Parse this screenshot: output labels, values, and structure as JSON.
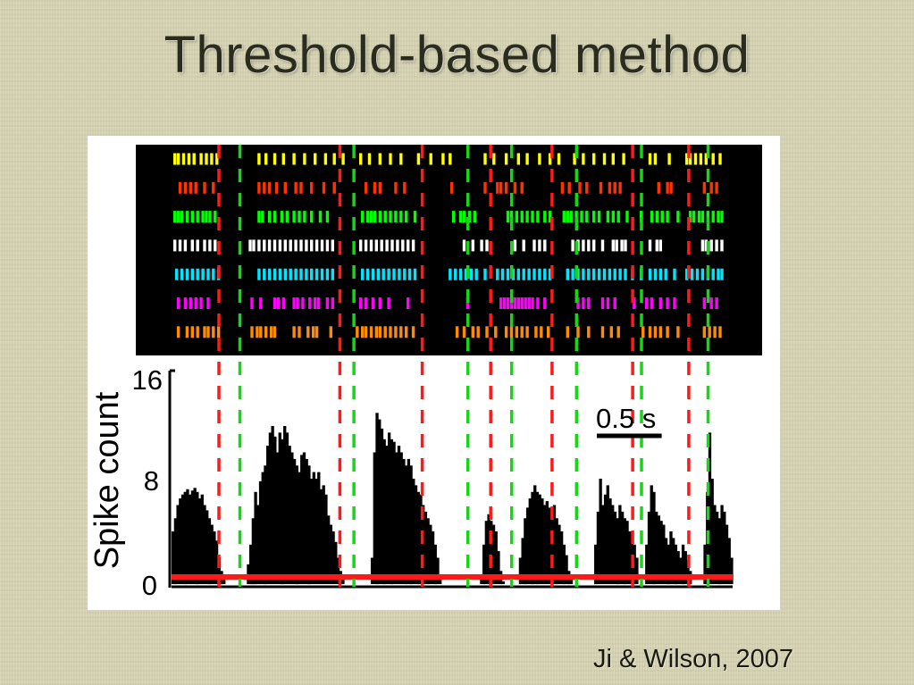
{
  "slide": {
    "title": "Threshold-based method",
    "citation": "Ji & Wilson, 2007"
  },
  "colors": {
    "background": "#d8d5b4",
    "raster_background": "#000000",
    "histogram_fill": "#000000",
    "threshold_line": "#ff1a1a",
    "event_start_line": "#19d419",
    "event_end_line": "#ff1a1a"
  },
  "chart_data": {
    "type": "raster-histogram",
    "scale_bar_label": "0.5 s",
    "scale_bar_seconds": 0.5,
    "time_range_s": [
      0,
      3.2
    ],
    "raster": {
      "unit_colors": [
        "#ffff00",
        "#ff3300",
        "#00ff00",
        "#ffffff",
        "#00e5ff",
        "#ff00ff",
        "#ff8c00"
      ],
      "units": [
        {
          "spikes": [
            0.01,
            0.03,
            0.06,
            0.09,
            0.12,
            0.16,
            0.19,
            0.22,
            0.25,
            0.49,
            0.53,
            0.58,
            0.63,
            0.69,
            0.75,
            0.81,
            0.87,
            0.92,
            0.97,
            1.07,
            1.12,
            1.18,
            1.24,
            1.3,
            1.4,
            1.47,
            1.54,
            1.58,
            1.78,
            1.83,
            1.9,
            1.97,
            2.02,
            2.09,
            2.15,
            2.2,
            2.29,
            2.34,
            2.4,
            2.46,
            2.51,
            2.57,
            2.72,
            2.75,
            2.83,
            2.93,
            2.95,
            2.98,
            3.01,
            3.04,
            3.08,
            3.12
          ]
        },
        {
          "spikes": [
            0.04,
            0.07,
            0.1,
            0.13,
            0.18,
            0.23,
            0.49,
            0.52,
            0.55,
            0.59,
            0.64,
            0.7,
            0.73,
            0.79,
            0.86,
            0.92,
            1.1,
            1.15,
            1.18,
            1.27,
            1.32,
            1.59,
            1.78,
            1.85,
            1.87,
            1.9,
            1.95,
            1.99,
            2.22,
            2.26,
            2.32,
            2.36,
            2.44,
            2.49,
            2.52,
            2.55,
            2.77,
            2.82,
            2.84,
            3.03,
            3.07,
            3.1
          ]
        },
        {
          "spikes": [
            0.01,
            0.03,
            0.05,
            0.08,
            0.11,
            0.14,
            0.17,
            0.19,
            0.21,
            0.24,
            0.49,
            0.51,
            0.55,
            0.58,
            0.62,
            0.65,
            0.69,
            0.72,
            0.75,
            0.79,
            0.84,
            0.88,
            1.08,
            1.11,
            1.13,
            1.15,
            1.18,
            1.21,
            1.24,
            1.27,
            1.3,
            1.33,
            1.38,
            1.6,
            1.64,
            1.66,
            1.69,
            1.72,
            1.91,
            1.93,
            1.96,
            1.99,
            2.02,
            2.05,
            2.08,
            2.12,
            2.15,
            2.23,
            2.25,
            2.27,
            2.3,
            2.33,
            2.36,
            2.4,
            2.43,
            2.48,
            2.51,
            2.54,
            2.59,
            2.67,
            2.73,
            2.76,
            2.79,
            2.82,
            2.88,
            2.95,
            2.97,
            3.0,
            3.02,
            3.05,
            3.08,
            3.11,
            3.13
          ]
        },
        {
          "spikes": [
            0.01,
            0.04,
            0.07,
            0.11,
            0.14,
            0.18,
            0.21,
            0.24,
            0.44,
            0.46,
            0.49,
            0.52,
            0.55,
            0.58,
            0.61,
            0.64,
            0.67,
            0.7,
            0.73,
            0.76,
            0.79,
            0.82,
            0.85,
            0.88,
            0.91,
            1.07,
            1.1,
            1.13,
            1.16,
            1.19,
            1.22,
            1.25,
            1.28,
            1.31,
            1.34,
            1.37,
            1.66,
            1.71,
            1.76,
            1.79,
            1.95,
            2.0,
            2.06,
            2.09,
            2.12,
            2.28,
            2.31,
            2.34,
            2.37,
            2.4,
            2.45,
            2.51,
            2.53,
            2.56,
            2.58,
            2.72,
            2.76,
            2.78,
            3.02,
            3.04,
            3.07,
            3.1,
            3.13
          ]
        },
        {
          "spikes": [
            0.02,
            0.05,
            0.08,
            0.11,
            0.14,
            0.17,
            0.2,
            0.23,
            0.26,
            0.49,
            0.52,
            0.55,
            0.58,
            0.61,
            0.64,
            0.67,
            0.7,
            0.73,
            0.76,
            0.79,
            0.82,
            0.85,
            0.88,
            0.91,
            1.08,
            1.11,
            1.14,
            1.17,
            1.2,
            1.23,
            1.26,
            1.29,
            1.32,
            1.35,
            1.38,
            1.58,
            1.61,
            1.64,
            1.67,
            1.7,
            1.73,
            1.78,
            1.85,
            1.88,
            1.91,
            1.94,
            1.97,
            2.0,
            2.03,
            2.06,
            2.09,
            2.12,
            2.15,
            2.25,
            2.28,
            2.31,
            2.34,
            2.37,
            2.4,
            2.43,
            2.46,
            2.49,
            2.52,
            2.55,
            2.58,
            2.62,
            2.67,
            2.72,
            2.75,
            2.78,
            2.81,
            2.86,
            2.93,
            2.96,
            2.99,
            3.02,
            3.05,
            3.08,
            3.11,
            3.13
          ]
        },
        {
          "spikes": [
            0.03,
            0.07,
            0.1,
            0.13,
            0.16,
            0.2,
            0.45,
            0.5,
            0.58,
            0.6,
            0.63,
            0.69,
            0.71,
            0.74,
            0.78,
            0.81,
            0.83,
            0.88,
            0.91,
            1.07,
            1.1,
            1.14,
            1.18,
            1.23,
            1.34,
            1.68,
            1.87,
            1.89,
            1.91,
            1.93,
            1.95,
            1.97,
            1.99,
            2.01,
            2.03,
            2.05,
            2.08,
            2.12,
            2.31,
            2.34,
            2.37,
            2.45,
            2.48,
            2.52,
            2.63,
            2.7,
            2.73,
            2.78,
            2.82,
            2.86,
            3.03,
            3.07,
            3.1
          ]
        },
        {
          "spikes": [
            0.03,
            0.08,
            0.11,
            0.14,
            0.18,
            0.2,
            0.23,
            0.26,
            0.45,
            0.48,
            0.5,
            0.53,
            0.56,
            0.58,
            0.69,
            0.72,
            0.77,
            0.8,
            0.82,
            0.9,
            1.05,
            1.08,
            1.1,
            1.13,
            1.16,
            1.18,
            1.21,
            1.24,
            1.27,
            1.3,
            1.33,
            1.37,
            1.62,
            1.66,
            1.71,
            1.74,
            1.79,
            1.84,
            1.9,
            1.93,
            1.96,
            1.99,
            2.02,
            2.07,
            2.1,
            2.14,
            2.25,
            2.31,
            2.37,
            2.45,
            2.5,
            2.54,
            2.68,
            2.72,
            2.75,
            2.78,
            2.82,
            2.88,
            3.03,
            3.06,
            3.09,
            3.12
          ]
        }
      ]
    },
    "histogram": {
      "ylabel": "Spike count",
      "yticks": [
        0,
        8,
        16
      ],
      "ylim": [
        0,
        16
      ],
      "threshold": 0,
      "spike_count": [
        4,
        5,
        6,
        6.5,
        6.8,
        7,
        7.2,
        6.8,
        7.1,
        7.3,
        7,
        6.5,
        6.8,
        6,
        5.6,
        5,
        4.5,
        4,
        3.3,
        2,
        1,
        0.4,
        0,
        0,
        0,
        0,
        0,
        0,
        0,
        0,
        0,
        1.5,
        3,
        5,
        7,
        6,
        7.8,
        8.5,
        9,
        10.5,
        11.5,
        12,
        11.2,
        10,
        11.5,
        11,
        12,
        11.5,
        10.5,
        10,
        9.5,
        9,
        8.5,
        9.8,
        10,
        9.5,
        9,
        8,
        8.5,
        8,
        8.5,
        7.2,
        7.5,
        6.8,
        5.2,
        4.5,
        4,
        3.2,
        2,
        1,
        0.5,
        0,
        0,
        0,
        0,
        0,
        0,
        0,
        0,
        0,
        0,
        0,
        2,
        10,
        13,
        12.5,
        11.8,
        11,
        10.5,
        11.5,
        11,
        10.8,
        10,
        10.5,
        10,
        9.5,
        9,
        9.5,
        9,
        8,
        7.5,
        7,
        6.8,
        6,
        5.5,
        5,
        4.5,
        4,
        3,
        2,
        0.5,
        0,
        0,
        0,
        0,
        0,
        0,
        0,
        0,
        0,
        0,
        0,
        0,
        0,
        0,
        0,
        0,
        0.5,
        3,
        4.8,
        5.3,
        4.8,
        4.5,
        4,
        2.5,
        1,
        0.2,
        0,
        0,
        0,
        0,
        0,
        0,
        2,
        3.5,
        5,
        5.8,
        6.5,
        7,
        7.5,
        7,
        6.8,
        6.5,
        6,
        6.3,
        5.8,
        5.5,
        6,
        5,
        4.5,
        4,
        3,
        2.2,
        1,
        0.4,
        0,
        0,
        0,
        0,
        0,
        0,
        0,
        0,
        0,
        3,
        5.5,
        8,
        6,
        6.8,
        7.5,
        6.5,
        6,
        5.5,
        5,
        6,
        5.5,
        5,
        4.8,
        4,
        3.8,
        3,
        2,
        0,
        0,
        0,
        3,
        5.5,
        7.5,
        7,
        5.5,
        5.2,
        4.8,
        4.5,
        3.5,
        3,
        4,
        3.5,
        3,
        2.5,
        2,
        3,
        2.5,
        1.8,
        1,
        0,
        0,
        0,
        0,
        0,
        3,
        7,
        11.5,
        8,
        6,
        5.5,
        5,
        6,
        5.5,
        4.5,
        3.5,
        2
      ]
    },
    "event_boundaries": [
      {
        "type": "end",
        "t": 0.27
      },
      {
        "type": "start",
        "t": 0.39
      },
      {
        "type": "end",
        "t": 0.96
      },
      {
        "type": "start",
        "t": 1.04
      },
      {
        "type": "end",
        "t": 1.43
      },
      {
        "type": "start",
        "t": 1.69
      },
      {
        "type": "end",
        "t": 1.82
      },
      {
        "type": "start",
        "t": 1.94
      },
      {
        "type": "end",
        "t": 2.17
      },
      {
        "type": "start",
        "t": 2.31
      },
      {
        "type": "end",
        "t": 2.63
      },
      {
        "type": "start",
        "t": 2.68
      },
      {
        "type": "end",
        "t": 2.95
      },
      {
        "type": "start",
        "t": 3.06
      }
    ]
  }
}
